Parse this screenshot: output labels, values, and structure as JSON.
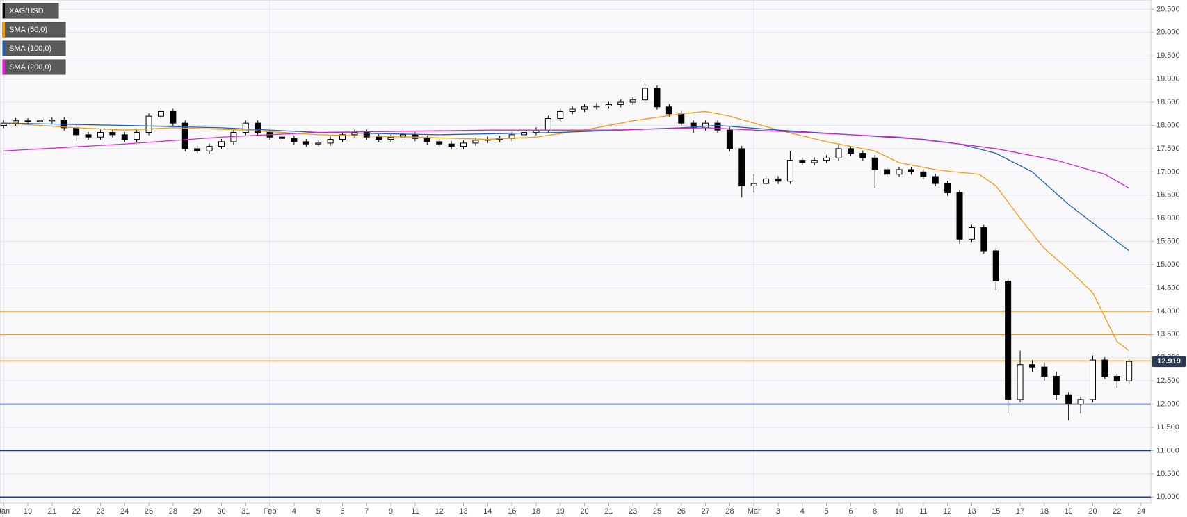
{
  "chart_data": {
    "type": "candlestick",
    "candles": {
      "name": "XAG/USD",
      "color_up": "#ffffff",
      "color_down": "#000000",
      "x": [
        0,
        0.5,
        1,
        1.5,
        2,
        2.5,
        3,
        3.5,
        4,
        4.5,
        5,
        5.5,
        6,
        6.5,
        7,
        7.5,
        8,
        8.5,
        9,
        9.5,
        10,
        10.5,
        11,
        11.5,
        12,
        12.5,
        13,
        13.5,
        14,
        14.5,
        15,
        15.5,
        16,
        16.5,
        17,
        17.5,
        18,
        18.5,
        19,
        19.5,
        20,
        20.5,
        21,
        21.5,
        22,
        22.5,
        23,
        23.5,
        24,
        24.5,
        25,
        25.5,
        26,
        26.5,
        27,
        27.5,
        28,
        28.5,
        29,
        29.5,
        30,
        30.5,
        31,
        31.5,
        32,
        32.5,
        33,
        33.5,
        34,
        34.5,
        35,
        35.5,
        36,
        36.5,
        37,
        37.5,
        38,
        38.5,
        39,
        39.5,
        40,
        40.5,
        41,
        41.5,
        42,
        42.5,
        43,
        43.5,
        44,
        44.5,
        45,
        45.5,
        46,
        46.5
      ],
      "open": [
        18.0,
        18.05,
        18.1,
        18.08,
        18.1,
        18.12,
        17.95,
        17.8,
        17.75,
        17.85,
        17.8,
        17.7,
        17.85,
        18.2,
        18.3,
        18.05,
        17.5,
        17.45,
        17.55,
        17.65,
        17.85,
        18.05,
        17.85,
        17.75,
        17.72,
        17.65,
        17.6,
        17.62,
        17.7,
        17.8,
        17.85,
        17.75,
        17.7,
        17.75,
        17.8,
        17.72,
        17.65,
        17.6,
        17.55,
        17.62,
        17.68,
        17.7,
        17.72,
        17.8,
        17.85,
        17.9,
        18.15,
        18.3,
        18.35,
        18.4,
        18.42,
        18.45,
        18.5,
        18.55,
        18.8,
        18.4,
        18.25,
        18.05,
        17.95,
        18.05,
        17.9,
        17.5,
        16.7,
        16.75,
        16.85,
        16.8,
        17.25,
        17.2,
        17.25,
        17.3,
        17.5,
        17.4,
        17.3,
        17.05,
        16.95,
        17.05,
        17.0,
        16.9,
        16.75,
        16.55,
        15.55,
        15.8,
        15.3,
        14.65,
        12.1,
        12.85,
        12.8,
        12.6,
        12.2,
        12.0,
        12.1,
        12.95,
        12.6,
        12.5
      ],
      "high": [
        18.11,
        18.16,
        18.16,
        18.16,
        18.18,
        18.18,
        18.01,
        17.86,
        17.91,
        17.91,
        17.86,
        17.91,
        18.26,
        18.38,
        18.36,
        18.11,
        17.56,
        17.61,
        17.71,
        17.91,
        18.11,
        18.11,
        17.91,
        17.81,
        17.78,
        17.71,
        17.68,
        17.76,
        17.86,
        17.91,
        17.91,
        17.81,
        17.81,
        17.86,
        17.86,
        17.78,
        17.71,
        17.66,
        17.68,
        17.74,
        17.76,
        17.78,
        17.86,
        17.91,
        17.96,
        18.21,
        18.36,
        18.41,
        18.46,
        18.48,
        18.51,
        18.56,
        18.61,
        18.92,
        18.86,
        18.46,
        18.31,
        18.11,
        18.11,
        18.11,
        17.96,
        17.56,
        16.95,
        16.91,
        16.91,
        17.45,
        17.31,
        17.31,
        17.36,
        17.6,
        17.56,
        17.46,
        17.36,
        17.11,
        17.11,
        17.11,
        17.06,
        16.96,
        16.81,
        16.61,
        15.86,
        15.86,
        15.36,
        14.71,
        13.15,
        12.95,
        12.9,
        12.7,
        12.26,
        12.16,
        13.05,
        13.01,
        12.66,
        12.98
      ],
      "low": [
        17.94,
        17.99,
        18.02,
        18.02,
        18.04,
        17.89,
        17.66,
        17.69,
        17.69,
        17.74,
        17.64,
        17.64,
        17.79,
        18.14,
        17.99,
        17.44,
        17.39,
        17.39,
        17.49,
        17.59,
        17.79,
        17.79,
        17.69,
        17.66,
        17.59,
        17.54,
        17.54,
        17.56,
        17.64,
        17.74,
        17.69,
        17.64,
        17.64,
        17.69,
        17.66,
        17.59,
        17.54,
        17.49,
        17.49,
        17.56,
        17.62,
        17.64,
        17.66,
        17.74,
        17.79,
        17.84,
        18.09,
        18.24,
        18.29,
        18.34,
        18.36,
        18.39,
        18.44,
        18.49,
        18.34,
        18.19,
        17.99,
        17.84,
        17.89,
        17.84,
        17.44,
        16.45,
        16.55,
        16.69,
        16.74,
        16.74,
        17.14,
        17.14,
        17.19,
        17.24,
        17.34,
        17.24,
        16.65,
        16.89,
        16.89,
        16.94,
        16.84,
        16.69,
        16.49,
        15.45,
        15.49,
        15.24,
        14.45,
        11.8,
        12.04,
        12.7,
        12.5,
        12.1,
        11.65,
        11.8,
        12.04,
        12.54,
        12.35,
        12.44
      ],
      "close": [
        18.05,
        18.1,
        18.08,
        18.1,
        18.12,
        17.95,
        17.8,
        17.75,
        17.85,
        17.8,
        17.7,
        17.85,
        18.2,
        18.3,
        18.05,
        17.5,
        17.45,
        17.55,
        17.65,
        17.85,
        18.05,
        17.85,
        17.75,
        17.72,
        17.65,
        17.6,
        17.62,
        17.7,
        17.8,
        17.85,
        17.75,
        17.7,
        17.75,
        17.8,
        17.72,
        17.65,
        17.6,
        17.55,
        17.62,
        17.68,
        17.7,
        17.72,
        17.8,
        17.85,
        17.9,
        18.15,
        18.3,
        18.35,
        18.4,
        18.42,
        18.45,
        18.5,
        18.55,
        18.8,
        18.4,
        18.25,
        18.05,
        17.95,
        18.05,
        17.9,
        17.5,
        16.7,
        16.75,
        16.85,
        16.8,
        17.25,
        17.2,
        17.25,
        17.3,
        17.5,
        17.4,
        17.3,
        17.05,
        16.95,
        17.05,
        17.0,
        16.9,
        16.75,
        16.55,
        15.55,
        15.8,
        15.3,
        14.65,
        12.1,
        12.85,
        12.8,
        12.6,
        12.2,
        12.0,
        12.1,
        12.95,
        12.6,
        12.5,
        12.919
      ]
    },
    "series": [
      {
        "name": "SMA (50,0)",
        "color": "#f39c12",
        "x": [
          0,
          3,
          5,
          7,
          10,
          13,
          17,
          20,
          22,
          24,
          26,
          28,
          29,
          30,
          32,
          34,
          36,
          37,
          38.5,
          39.3,
          40.3,
          41,
          42,
          43,
          44,
          45,
          46,
          46.5
        ],
        "values": [
          18.05,
          17.95,
          17.9,
          17.95,
          17.9,
          17.8,
          17.75,
          17.7,
          17.75,
          17.9,
          18.1,
          18.25,
          18.3,
          18.2,
          17.9,
          17.65,
          17.45,
          17.2,
          17.05,
          17.0,
          16.95,
          16.7,
          16.0,
          15.35,
          14.9,
          14.4,
          13.35,
          13.15
        ]
      },
      {
        "name": "SMA (100,0)",
        "color": "#1f5fb4",
        "x": [
          0,
          5,
          9,
          13,
          18,
          23,
          28,
          29.5,
          32,
          35,
          38,
          39.5,
          41,
          42.5,
          44,
          45.5,
          46.5
        ],
        "values": [
          18.05,
          18.0,
          17.95,
          17.85,
          17.8,
          17.85,
          17.95,
          18.0,
          17.9,
          17.8,
          17.7,
          17.6,
          17.4,
          17.0,
          16.3,
          15.7,
          15.3
        ]
      },
      {
        "name": "SMA (200,0)",
        "color": "#e020d8",
        "x": [
          0,
          5,
          9,
          13,
          20,
          25,
          29,
          33,
          37,
          39.5,
          41,
          43.5,
          45.5,
          46.5
        ],
        "values": [
          17.45,
          17.6,
          17.75,
          17.85,
          17.9,
          17.9,
          17.95,
          17.85,
          17.75,
          17.6,
          17.5,
          17.25,
          16.95,
          16.65
        ]
      }
    ],
    "levels": [
      {
        "value": 14.0,
        "color": "#f39c12"
      },
      {
        "value": 13.5,
        "color": "#f39c12"
      },
      {
        "value": 12.93,
        "color": "#f39c12"
      },
      {
        "value": 12.0,
        "color": "#1a3f8a"
      },
      {
        "value": 11.0,
        "color": "#1a3f8a"
      },
      {
        "value": 10.0,
        "color": "#1a3f8a"
      }
    ],
    "last_price": 12.919,
    "xlim": [
      -0.15,
      47.4
    ],
    "ylim": [
      9.87,
      20.7
    ],
    "grid": true,
    "xticks": [
      {
        "value": 0,
        "label": "Jan"
      },
      {
        "value": 1,
        "label": "19"
      },
      {
        "value": 2,
        "label": "21"
      },
      {
        "value": 3,
        "label": "22"
      },
      {
        "value": 4,
        "label": "23"
      },
      {
        "value": 5,
        "label": "24"
      },
      {
        "value": 6,
        "label": "26"
      },
      {
        "value": 7,
        "label": "28"
      },
      {
        "value": 8,
        "label": "29"
      },
      {
        "value": 9,
        "label": "30"
      },
      {
        "value": 10,
        "label": "31"
      },
      {
        "value": 11,
        "label": "Feb"
      },
      {
        "value": 12,
        "label": "4"
      },
      {
        "value": 13,
        "label": "5"
      },
      {
        "value": 14,
        "label": "6"
      },
      {
        "value": 15,
        "label": "7"
      },
      {
        "value": 16,
        "label": "9"
      },
      {
        "value": 17,
        "label": "11"
      },
      {
        "value": 18,
        "label": "12"
      },
      {
        "value": 19,
        "label": "13"
      },
      {
        "value": 20,
        "label": "14"
      },
      {
        "value": 21,
        "label": "16"
      },
      {
        "value": 22,
        "label": "18"
      },
      {
        "value": 23,
        "label": "19"
      },
      {
        "value": 24,
        "label": "20"
      },
      {
        "value": 25,
        "label": "21"
      },
      {
        "value": 26,
        "label": "23"
      },
      {
        "value": 27,
        "label": "25"
      },
      {
        "value": 28,
        "label": "26"
      },
      {
        "value": 29,
        "label": "27"
      },
      {
        "value": 30,
        "label": "28"
      },
      {
        "value": 31,
        "label": "Mar"
      },
      {
        "value": 32,
        "label": "3"
      },
      {
        "value": 33,
        "label": "4"
      },
      {
        "value": 34,
        "label": "5"
      },
      {
        "value": 35,
        "label": "6"
      },
      {
        "value": 36,
        "label": "8"
      },
      {
        "value": 37,
        "label": "10"
      },
      {
        "value": 38,
        "label": "11"
      },
      {
        "value": 39,
        "label": "12"
      },
      {
        "value": 40,
        "label": "13"
      },
      {
        "value": 41,
        "label": "15"
      },
      {
        "value": 42,
        "label": "17"
      },
      {
        "value": 43,
        "label": "18"
      },
      {
        "value": 44,
        "label": "19"
      },
      {
        "value": 45,
        "label": "20"
      },
      {
        "value": 46,
        "label": "22"
      },
      {
        "value": 47,
        "label": "24"
      }
    ],
    "yticks": [
      {
        "value": 10,
        "label": "10.000"
      },
      {
        "value": 10.5,
        "label": "10.500"
      },
      {
        "value": 11,
        "label": "11.000"
      },
      {
        "value": 11.5,
        "label": "11.500"
      },
      {
        "value": 12,
        "label": "12.000"
      },
      {
        "value": 12.5,
        "label": "12.500"
      },
      {
        "value": 13,
        "label": "13.000"
      },
      {
        "value": 13.5,
        "label": "13.500"
      },
      {
        "value": 14,
        "label": "14.000"
      },
      {
        "value": 14.5,
        "label": "14.500"
      },
      {
        "value": 15,
        "label": "15.000"
      },
      {
        "value": 15.5,
        "label": "15.500"
      },
      {
        "value": 16,
        "label": "16.000"
      },
      {
        "value": 16.5,
        "label": "16.500"
      },
      {
        "value": 17,
        "label": "17.000"
      },
      {
        "value": 17.5,
        "label": "17.500"
      },
      {
        "value": 18,
        "label": "18.000"
      },
      {
        "value": 18.5,
        "label": "18.500"
      },
      {
        "value": 19,
        "label": "19.000"
      },
      {
        "value": 19.5,
        "label": "19.500"
      },
      {
        "value": 20,
        "label": "20.000"
      },
      {
        "value": 20.5,
        "label": "20.500"
      }
    ]
  }
}
